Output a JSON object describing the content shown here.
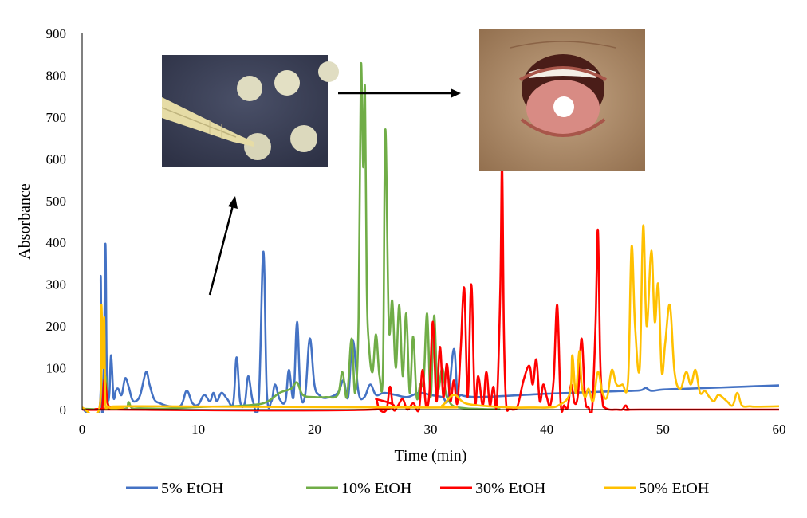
{
  "chart_data": {
    "type": "line",
    "xlabel": "Time (min)",
    "ylabel": "Absorbance",
    "xlim": [
      0,
      60
    ],
    "ylim": [
      0,
      900
    ],
    "xticks": [
      0,
      10,
      20,
      30,
      40,
      50,
      60
    ],
    "yticks": [
      0,
      100,
      200,
      300,
      400,
      500,
      600,
      700,
      800,
      900
    ],
    "grid": false,
    "legend_position": "bottom",
    "series": [
      {
        "name": "5% EtOH",
        "color": "#4472C4",
        "x": [
          0,
          1.5,
          1.6,
          1.7,
          1.85,
          2.0,
          2.1,
          2.2,
          2.35,
          2.5,
          2.7,
          2.9,
          3.1,
          3.4,
          3.7,
          4.0,
          4.3,
          4.6,
          5.0,
          5.5,
          5.8,
          6.2,
          6.7,
          7.5,
          8.5,
          9.0,
          9.5,
          10.0,
          10.5,
          11.0,
          11.3,
          11.6,
          12.0,
          12.5,
          13.0,
          13.3,
          13.6,
          14.0,
          14.3,
          14.7,
          15.2,
          15.6,
          15.9,
          16.3,
          16.6,
          17.0,
          17.5,
          17.8,
          18.2,
          18.5,
          18.8,
          19.2,
          19.6,
          20.0,
          20.4,
          21.0,
          22.0,
          22.5,
          22.9,
          23.3,
          23.8,
          24.3,
          24.8,
          25.3,
          26.0,
          27.0,
          28.0,
          29.0,
          30.0,
          31.0,
          31.5,
          32.0,
          32.3,
          32.6,
          33.0,
          34.0,
          36.0,
          38.0,
          40.0,
          42.0,
          44.0,
          46.0,
          48.0,
          48.5,
          49.0,
          50.0,
          52.0,
          54.0,
          56.0,
          58.0,
          60.0
        ],
        "y": [
          2,
          3,
          320,
          8,
          40,
          396,
          130,
          30,
          40,
          130,
          30,
          45,
          50,
          35,
          75,
          55,
          25,
          20,
          35,
          90,
          60,
          25,
          15,
          8,
          10,
          45,
          15,
          12,
          35,
          20,
          40,
          20,
          40,
          25,
          15,
          125,
          20,
          15,
          80,
          20,
          20,
          378,
          40,
          20,
          60,
          25,
          20,
          95,
          30,
          210,
          40,
          35,
          170,
          60,
          35,
          28,
          40,
          70,
          30,
          165,
          40,
          30,
          60,
          35,
          40,
          35,
          30,
          40,
          35,
          30,
          25,
          145,
          40,
          35,
          32,
          30,
          32,
          35,
          38,
          40,
          42,
          44,
          46,
          52,
          45,
          48,
          50,
          52,
          54,
          56,
          58
        ]
      },
      {
        "name": "10% EtOH",
        "color": "#70AD47",
        "x": [
          0,
          1.6,
          1.8,
          2.0,
          2.2,
          2.4,
          3.0,
          3.8,
          4.0,
          4.3,
          5.0,
          7.0,
          9.0,
          11.0,
          13.0,
          15.0,
          16.0,
          17.0,
          18.0,
          18.5,
          19.0,
          20.0,
          21.0,
          22.0,
          22.4,
          22.8,
          23.2,
          23.5,
          23.8,
          24.0,
          24.2,
          24.35,
          24.5,
          24.7,
          25.0,
          25.3,
          25.6,
          25.9,
          26.1,
          26.4,
          26.7,
          27.0,
          27.3,
          27.6,
          27.9,
          28.2,
          28.5,
          28.8,
          29.1,
          29.4,
          29.7,
          30.0,
          30.3,
          30.6,
          31.0,
          31.3,
          31.6,
          32.0,
          33.0,
          34.0,
          35.0,
          36.0
        ],
        "y": [
          2,
          2,
          15,
          80,
          20,
          5,
          3,
          3,
          18,
          3,
          3,
          2,
          5,
          7,
          8,
          12,
          20,
          40,
          50,
          65,
          35,
          30,
          30,
          35,
          90,
          30,
          170,
          40,
          220,
          820,
          580,
          770,
          300,
          150,
          90,
          180,
          80,
          100,
          670,
          200,
          260,
          100,
          250,
          80,
          230,
          40,
          175,
          30,
          60,
          70,
          230,
          30,
          225,
          50,
          100,
          40,
          20,
          8,
          3,
          2,
          1,
          1
        ]
      },
      {
        "name": "30% EtOH",
        "color": "#FF0000",
        "x": [
          0,
          1.6,
          1.75,
          1.9,
          2.05,
          2.2,
          2.4,
          2.6,
          3.0,
          25.0,
          25.3,
          25.6,
          26.2,
          26.5,
          26.8,
          27.2,
          27.6,
          28.0,
          28.5,
          29.0,
          29.3,
          29.6,
          29.9,
          30.2,
          30.5,
          30.8,
          31.1,
          31.4,
          31.7,
          32.0,
          32.3,
          32.6,
          32.9,
          33.2,
          33.5,
          33.8,
          34.1,
          34.5,
          34.8,
          35.1,
          35.4,
          35.7,
          36.0,
          36.15,
          36.3,
          36.5,
          36.8,
          37.1,
          37.5,
          38.0,
          38.5,
          38.8,
          39.1,
          39.4,
          39.7,
          40.0,
          40.3,
          40.6,
          40.9,
          41.2,
          41.5,
          41.8,
          42.1,
          42.4,
          42.7,
          43.0,
          43.3,
          43.6,
          43.9,
          44.2,
          44.4,
          44.6,
          44.8,
          45.0,
          45.4,
          46.0,
          46.5,
          46.8,
          47.1,
          48.0,
          60.0
        ],
        "y": [
          0,
          0,
          10,
          70,
          50,
          15,
          5,
          3,
          0,
          0,
          25,
          0,
          0,
          55,
          0,
          10,
          25,
          0,
          15,
          0,
          95,
          10,
          40,
          210,
          20,
          150,
          30,
          110,
          20,
          70,
          15,
          150,
          290,
          30,
          300,
          20,
          80,
          10,
          90,
          10,
          55,
          15,
          290,
          590,
          200,
          15,
          5,
          0,
          10,
          70,
          105,
          60,
          120,
          20,
          60,
          30,
          10,
          75,
          250,
          15,
          10,
          5,
          60,
          15,
          40,
          170,
          25,
          5,
          0,
          200,
          430,
          120,
          20,
          5,
          0,
          0,
          0,
          10,
          0,
          0,
          0
        ]
      },
      {
        "name": "50% EtOH",
        "color": "#FFC000",
        "x": [
          0,
          1.5,
          1.65,
          1.8,
          1.9,
          2.0,
          2.2,
          2.6,
          3.5,
          5.0,
          30.0,
          31.0,
          32.0,
          33.0,
          35.0,
          37.0,
          39.0,
          40.0,
          41.0,
          42.0,
          42.2,
          42.5,
          42.8,
          43.0,
          43.3,
          43.6,
          44.0,
          44.4,
          44.8,
          45.2,
          45.6,
          46.0,
          46.5,
          47.0,
          47.3,
          47.6,
          48.0,
          48.3,
          48.6,
          49.0,
          49.3,
          49.6,
          49.9,
          50.2,
          50.6,
          51.0,
          51.5,
          52.0,
          52.4,
          52.8,
          53.2,
          53.6,
          54.0,
          54.4,
          54.8,
          55.5,
          56.0,
          56.4,
          56.8,
          57.5,
          58.0,
          60.0
        ],
        "y": [
          5,
          5,
          250,
          100,
          220,
          20,
          8,
          3,
          5,
          8,
          5,
          10,
          35,
          15,
          8,
          5,
          5,
          5,
          10,
          40,
          130,
          40,
          140,
          60,
          30,
          50,
          20,
          90,
          40,
          30,
          95,
          60,
          60,
          70,
          390,
          200,
          100,
          440,
          200,
          380,
          210,
          300,
          90,
          160,
          250,
          90,
          50,
          90,
          60,
          95,
          40,
          45,
          30,
          20,
          35,
          20,
          10,
          40,
          10,
          8,
          7,
          8
        ]
      }
    ],
    "annotations": {
      "images": [
        "paper-disc-pipette-photo",
        "tongue-disc-photo"
      ],
      "arrows": 2
    }
  }
}
